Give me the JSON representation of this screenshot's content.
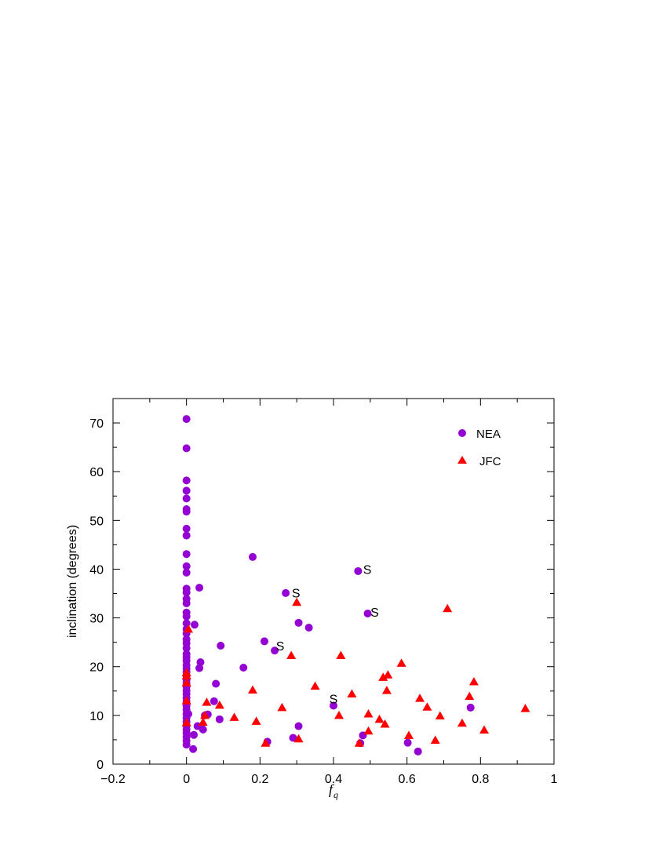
{
  "chart_data": {
    "type": "scatter",
    "xlabel": "f",
    "xlabel_subscript": "q",
    "ylabel": "inclination (degrees)",
    "xlim": [
      -0.2,
      1
    ],
    "ylim": [
      0,
      75
    ],
    "x_ticks": [
      -0.2,
      0,
      0.2,
      0.4,
      0.6,
      0.8,
      1
    ],
    "x_tick_labels": [
      "−0.2",
      "0",
      "0.2",
      "0.4",
      "0.6",
      "0.8",
      "1"
    ],
    "y_ticks": [
      0,
      10,
      20,
      30,
      40,
      50,
      60,
      70
    ],
    "y_tick_labels": [
      "0",
      "10",
      "20",
      "30",
      "40",
      "50",
      "60",
      "70"
    ],
    "grid": false,
    "legend_position": "top-right",
    "series": [
      {
        "name": "NEA",
        "marker": "circle",
        "color": "#9400D3",
        "points": [
          [
            0,
            70.8
          ],
          [
            0,
            64.8
          ],
          [
            0,
            58.2
          ],
          [
            0,
            56.1
          ],
          [
            0,
            54.5
          ],
          [
            0,
            52.3
          ],
          [
            0,
            51.8
          ],
          [
            0,
            48.3
          ],
          [
            0,
            46.9
          ],
          [
            0,
            43.1
          ],
          [
            0,
            40.6
          ],
          [
            0,
            39.3
          ],
          [
            0,
            36.0
          ],
          [
            0,
            35.2
          ],
          [
            0,
            33.9
          ],
          [
            0,
            33.0
          ],
          [
            0,
            31.1
          ],
          [
            0,
            30.3
          ],
          [
            0,
            28.9
          ],
          [
            0,
            27.7
          ],
          [
            0,
            26.8
          ],
          [
            0,
            25.6
          ],
          [
            0,
            24.8
          ],
          [
            0,
            23.8
          ],
          [
            0,
            22.6
          ],
          [
            0,
            21.9
          ],
          [
            0,
            21.2
          ],
          [
            0,
            20.3
          ],
          [
            0,
            19.6
          ],
          [
            0,
            18.9
          ],
          [
            0,
            18.1
          ],
          [
            0,
            17.3
          ],
          [
            0,
            16.6
          ],
          [
            0,
            15.9
          ],
          [
            0,
            15.1
          ],
          [
            0,
            14.4
          ],
          [
            0,
            13.6
          ],
          [
            0,
            12.8
          ],
          [
            0,
            12.0
          ],
          [
            0,
            11.2
          ],
          [
            0,
            10.3
          ],
          [
            0,
            9.5
          ],
          [
            0,
            8.7
          ],
          [
            0,
            7.9
          ],
          [
            0,
            7.1
          ],
          [
            0,
            6.4
          ],
          [
            0,
            5.6
          ],
          [
            0,
            4.8
          ],
          [
            0,
            4.0
          ],
          [
            0.005,
            10.3
          ],
          [
            0.018,
            3.1
          ],
          [
            0.02,
            6.0
          ],
          [
            0.022,
            28.6
          ],
          [
            0.03,
            7.8
          ],
          [
            0.035,
            19.7
          ],
          [
            0.035,
            36.2
          ],
          [
            0.038,
            20.9
          ],
          [
            0.045,
            7.1
          ],
          [
            0.05,
            10.0
          ],
          [
            0.058,
            10.2
          ],
          [
            0.075,
            12.9
          ],
          [
            0.08,
            16.5
          ],
          [
            0.09,
            9.2
          ],
          [
            0.093,
            24.3
          ],
          [
            0.155,
            19.8
          ],
          [
            0.18,
            42.5
          ],
          [
            0.212,
            25.2
          ],
          [
            0.22,
            4.6
          ],
          [
            0.24,
            23.3
          ],
          [
            0.27,
            35.1
          ],
          [
            0.29,
            5.4
          ],
          [
            0.305,
            29.0
          ],
          [
            0.305,
            7.8
          ],
          [
            0.333,
            28.0
          ],
          [
            0.4,
            12.0
          ],
          [
            0.467,
            39.6
          ],
          [
            0.473,
            4.3
          ],
          [
            0.48,
            5.9
          ],
          [
            0.493,
            30.9
          ],
          [
            0.602,
            4.4
          ],
          [
            0.63,
            2.6
          ],
          [
            0.773,
            11.6
          ]
        ]
      },
      {
        "name": "JFC",
        "marker": "triangle",
        "color": "#FF0000",
        "points": [
          [
            0.005,
            27.7
          ],
          [
            0,
            18.8
          ],
          [
            0,
            18.1
          ],
          [
            0,
            16.7
          ],
          [
            0,
            13.0
          ],
          [
            0,
            8.5
          ],
          [
            0.045,
            8.6
          ],
          [
            0.05,
            10.0
          ],
          [
            0.055,
            12.7
          ],
          [
            0.09,
            12.1
          ],
          [
            0.13,
            9.6
          ],
          [
            0.18,
            15.2
          ],
          [
            0.19,
            8.8
          ],
          [
            0.215,
            4.3
          ],
          [
            0.26,
            11.6
          ],
          [
            0.285,
            22.3
          ],
          [
            0.3,
            33.2
          ],
          [
            0.305,
            5.2
          ],
          [
            0.35,
            16.0
          ],
          [
            0.415,
            10.0
          ],
          [
            0.42,
            22.3
          ],
          [
            0.45,
            14.4
          ],
          [
            0.47,
            4.3
          ],
          [
            0.495,
            10.3
          ],
          [
            0.495,
            6.8
          ],
          [
            0.525,
            9.2
          ],
          [
            0.535,
            17.8
          ],
          [
            0.54,
            8.2
          ],
          [
            0.545,
            15.1
          ],
          [
            0.548,
            18.3
          ],
          [
            0.585,
            20.7
          ],
          [
            0.605,
            5.9
          ],
          [
            0.635,
            13.5
          ],
          [
            0.655,
            11.7
          ],
          [
            0.677,
            4.9
          ],
          [
            0.69,
            9.9
          ],
          [
            0.71,
            31.9
          ],
          [
            0.75,
            8.4
          ],
          [
            0.77,
            13.9
          ],
          [
            0.782,
            16.9
          ],
          [
            0.81,
            7.0
          ],
          [
            0.922,
            11.4
          ]
        ]
      }
    ],
    "annotations": [
      {
        "text": "S",
        "x": 0.298,
        "y": 35.2
      },
      {
        "text": "S",
        "x": 0.255,
        "y": 24.3
      },
      {
        "text": "S",
        "x": 0.4,
        "y": 13.4
      },
      {
        "text": "S",
        "x": 0.492,
        "y": 40.0
      },
      {
        "text": "S",
        "x": 0.512,
        "y": 31.2
      }
    ]
  }
}
